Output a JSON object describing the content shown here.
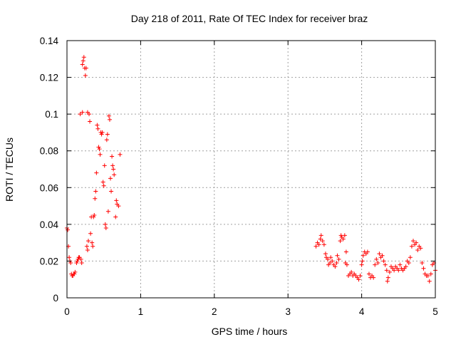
{
  "chart_data": {
    "type": "scatter",
    "title": "Day 218 of 2011, Rate Of TEC Index for receiver braz",
    "xlabel": "GPS time / hours",
    "ylabel": "ROTI / TECUs",
    "xlim": [
      0,
      5
    ],
    "ylim": [
      0,
      0.14
    ],
    "xticks": [
      0,
      1,
      2,
      3,
      4,
      5
    ],
    "xtick_labels": [
      "0",
      "1",
      "2",
      "3",
      "4",
      "5"
    ],
    "yticks": [
      0,
      0.02,
      0.04,
      0.06,
      0.08,
      0.1,
      0.12,
      0.14
    ],
    "ytick_labels": [
      "0",
      "0.02",
      "0.04",
      "0.06",
      "0.08",
      "0.1",
      "0.12",
      "0.14"
    ],
    "grid": true,
    "marker": "+",
    "color": "#ff0000",
    "series": [
      {
        "points": [
          [
            0.0,
            0.038
          ],
          [
            0.01,
            0.037
          ],
          [
            0.02,
            0.028
          ],
          [
            0.03,
            0.022
          ],
          [
            0.04,
            0.02
          ],
          [
            0.05,
            0.019
          ],
          [
            0.06,
            0.013
          ],
          [
            0.07,
            0.012
          ],
          [
            0.08,
            0.012
          ],
          [
            0.09,
            0.013
          ],
          [
            0.1,
            0.013
          ],
          [
            0.11,
            0.014
          ],
          [
            0.13,
            0.019
          ],
          [
            0.14,
            0.02
          ],
          [
            0.15,
            0.021
          ],
          [
            0.16,
            0.022
          ],
          [
            0.17,
            0.022
          ],
          [
            0.18,
            0.1
          ],
          [
            0.19,
            0.021
          ],
          [
            0.2,
            0.019
          ],
          [
            0.21,
            0.101
          ],
          [
            0.21,
            0.127
          ],
          [
            0.22,
            0.129
          ],
          [
            0.23,
            0.131
          ],
          [
            0.24,
            0.125
          ],
          [
            0.25,
            0.121
          ],
          [
            0.26,
            0.125
          ],
          [
            0.27,
            0.028
          ],
          [
            0.28,
            0.026
          ],
          [
            0.28,
            0.101
          ],
          [
            0.29,
            0.031
          ],
          [
            0.3,
            0.1
          ],
          [
            0.31,
            0.096
          ],
          [
            0.32,
            0.035
          ],
          [
            0.33,
            0.044
          ],
          [
            0.34,
            0.03
          ],
          [
            0.35,
            0.028
          ],
          [
            0.36,
            0.044
          ],
          [
            0.37,
            0.045
          ],
          [
            0.38,
            0.054
          ],
          [
            0.39,
            0.058
          ],
          [
            0.4,
            0.068
          ],
          [
            0.41,
            0.094
          ],
          [
            0.42,
            0.092
          ],
          [
            0.43,
            0.082
          ],
          [
            0.44,
            0.081
          ],
          [
            0.45,
            0.078
          ],
          [
            0.46,
            0.09
          ],
          [
            0.47,
            0.089
          ],
          [
            0.48,
            0.09
          ],
          [
            0.49,
            0.063
          ],
          [
            0.5,
            0.061
          ],
          [
            0.51,
            0.072
          ],
          [
            0.52,
            0.04
          ],
          [
            0.53,
            0.038
          ],
          [
            0.54,
            0.086
          ],
          [
            0.55,
            0.089
          ],
          [
            0.56,
            0.047
          ],
          [
            0.57,
            0.099
          ],
          [
            0.58,
            0.097
          ],
          [
            0.59,
            0.065
          ],
          [
            0.6,
            0.058
          ],
          [
            0.61,
            0.077
          ],
          [
            0.62,
            0.072
          ],
          [
            0.63,
            0.07
          ],
          [
            0.64,
            0.067
          ],
          [
            0.66,
            0.044
          ],
          [
            0.67,
            0.053
          ],
          [
            0.68,
            0.051
          ],
          [
            0.7,
            0.05
          ],
          [
            0.72,
            0.078
          ],
          [
            3.38,
            0.028
          ],
          [
            3.4,
            0.03
          ],
          [
            3.42,
            0.029
          ],
          [
            3.44,
            0.032
          ],
          [
            3.45,
            0.034
          ],
          [
            3.47,
            0.031
          ],
          [
            3.49,
            0.029
          ],
          [
            3.51,
            0.024
          ],
          [
            3.52,
            0.022
          ],
          [
            3.54,
            0.021
          ],
          [
            3.55,
            0.018
          ],
          [
            3.57,
            0.019
          ],
          [
            3.58,
            0.022
          ],
          [
            3.6,
            0.02
          ],
          [
            3.62,
            0.018
          ],
          [
            3.64,
            0.017
          ],
          [
            3.66,
            0.019
          ],
          [
            3.67,
            0.023
          ],
          [
            3.69,
            0.021
          ],
          [
            3.71,
            0.031
          ],
          [
            3.72,
            0.034
          ],
          [
            3.73,
            0.033
          ],
          [
            3.75,
            0.032
          ],
          [
            3.77,
            0.034
          ],
          [
            3.78,
            0.019
          ],
          [
            3.79,
            0.025
          ],
          [
            3.8,
            0.018
          ],
          [
            3.82,
            0.012
          ],
          [
            3.84,
            0.013
          ],
          [
            3.86,
            0.014
          ],
          [
            3.88,
            0.012
          ],
          [
            3.9,
            0.013
          ],
          [
            3.92,
            0.012
          ],
          [
            3.94,
            0.011
          ],
          [
            3.96,
            0.01
          ],
          [
            3.98,
            0.012
          ],
          [
            4.0,
            0.018
          ],
          [
            4.01,
            0.02
          ],
          [
            4.02,
            0.023
          ],
          [
            4.04,
            0.025
          ],
          [
            4.06,
            0.024
          ],
          [
            4.08,
            0.025
          ],
          [
            4.1,
            0.013
          ],
          [
            4.12,
            0.011
          ],
          [
            4.14,
            0.012
          ],
          [
            4.16,
            0.011
          ],
          [
            4.18,
            0.018
          ],
          [
            4.2,
            0.021
          ],
          [
            4.22,
            0.019
          ],
          [
            4.24,
            0.024
          ],
          [
            4.26,
            0.022
          ],
          [
            4.28,
            0.023
          ],
          [
            4.3,
            0.02
          ],
          [
            4.32,
            0.018
          ],
          [
            4.34,
            0.015
          ],
          [
            4.35,
            0.009
          ],
          [
            4.36,
            0.011
          ],
          [
            4.38,
            0.014
          ],
          [
            4.4,
            0.017
          ],
          [
            4.42,
            0.016
          ],
          [
            4.44,
            0.015
          ],
          [
            4.46,
            0.017
          ],
          [
            4.48,
            0.016
          ],
          [
            4.5,
            0.015
          ],
          [
            4.52,
            0.018
          ],
          [
            4.54,
            0.016
          ],
          [
            4.56,
            0.015
          ],
          [
            4.58,
            0.016
          ],
          [
            4.6,
            0.017
          ],
          [
            4.62,
            0.02
          ],
          [
            4.64,
            0.019
          ],
          [
            4.66,
            0.022
          ],
          [
            4.68,
            0.028
          ],
          [
            4.7,
            0.031
          ],
          [
            4.72,
            0.029
          ],
          [
            4.74,
            0.03
          ],
          [
            4.76,
            0.026
          ],
          [
            4.78,
            0.028
          ],
          [
            4.8,
            0.027
          ],
          [
            4.82,
            0.019
          ],
          [
            4.84,
            0.016
          ],
          [
            4.86,
            0.013
          ],
          [
            4.88,
            0.012
          ],
          [
            4.9,
            0.012
          ],
          [
            4.92,
            0.009
          ],
          [
            4.94,
            0.013
          ],
          [
            4.96,
            0.018
          ],
          [
            4.98,
            0.019
          ],
          [
            5.0,
            0.015
          ]
        ]
      }
    ]
  }
}
